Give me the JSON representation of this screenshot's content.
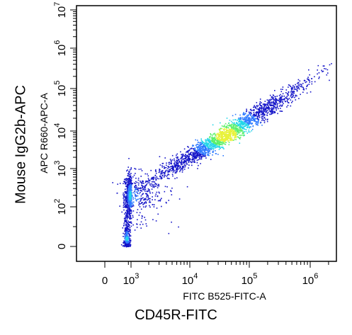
{
  "outer_xlabel": "CD45R-FITC",
  "outer_ylabel": "Mouse IgG2b-APC",
  "chart_data": {
    "type": "scatter",
    "subtype": "flow-cytometry-density-dot-plot",
    "xlabel": "FITC B525-FITC-A",
    "ylabel": "APC R660-APC-A",
    "x_scale": "biexponential",
    "y_scale": "biexponential",
    "x_ticks": [
      {
        "label_base": "0",
        "label_exp": "",
        "value": 0
      },
      {
        "label_base": "10",
        "label_exp": "3",
        "value": 1000
      },
      {
        "label_base": "10",
        "label_exp": "4",
        "value": 10000
      },
      {
        "label_base": "10",
        "label_exp": "5",
        "value": 100000
      },
      {
        "label_base": "10",
        "label_exp": "6",
        "value": 1000000
      }
    ],
    "y_ticks": [
      {
        "label_base": "0",
        "label_exp": "",
        "value": 0
      },
      {
        "label_base": "10",
        "label_exp": "2",
        "value": 100
      },
      {
        "label_base": "10",
        "label_exp": "3",
        "value": 1000
      },
      {
        "label_base": "10",
        "label_exp": "4",
        "value": 10000
      },
      {
        "label_base": "10",
        "label_exp": "5",
        "value": 100000
      },
      {
        "label_base": "10",
        "label_exp": "6",
        "value": 1000000
      },
      {
        "label_base": "10",
        "label_exp": "7",
        "value": 10000000
      }
    ],
    "xlim": [
      -1000,
      2000000
    ],
    "ylim": [
      -100,
      10000000
    ],
    "grid": false,
    "legend": "none",
    "colormap": [
      "#1414c8",
      "#2f7bff",
      "#23d6e8",
      "#5cf06a",
      "#e8f23a"
    ],
    "populations": [
      {
        "name": "",
        "center_x": 700,
        "center_y": 200,
        "spread_x_decades": 0.35,
        "spread_y_decades": 0.3,
        "relative_density": 0.35
      },
      {
        "name": "",
        "center_x": 40000,
        "center_y": 8000,
        "spread_x_decades": 0.45,
        "spread_y_decades": 0.4,
        "relative_density": 1.0,
        "trend": "diagonal"
      },
      {
        "name": "",
        "center_x": 300,
        "center_y": 20,
        "spread_x_decades": 0.2,
        "spread_y_decades": 0.5,
        "relative_density": 0.15
      }
    ]
  }
}
